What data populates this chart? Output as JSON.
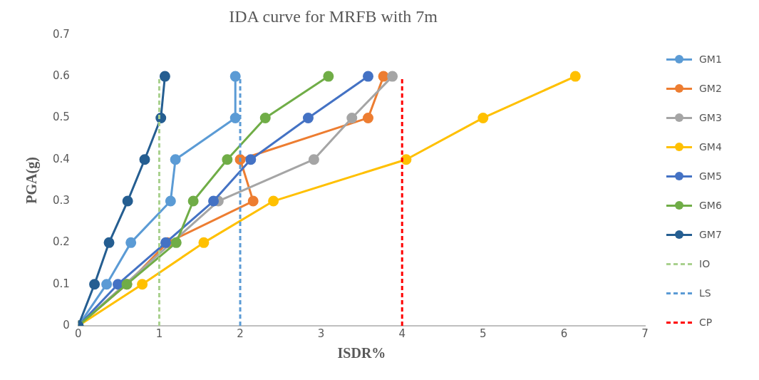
{
  "chart_data": {
    "type": "line",
    "title": "IDA curve for MRFB with 7m",
    "xlabel": "ISDR%",
    "ylabel": "PGA(g)",
    "xlim": [
      0,
      7
    ],
    "xticks": [
      0,
      1,
      2,
      3,
      4,
      5,
      6,
      7
    ],
    "ylim": [
      0,
      0.7
    ],
    "yticks": [
      0,
      0.1,
      0.2,
      0.3,
      0.4,
      0.5,
      0.6,
      0.7
    ],
    "grid": false,
    "legend": "right",
    "marker": "circle",
    "line_style": "solid",
    "series": [
      {
        "name": "GM1",
        "color": "#5b9bd5",
        "x": [
          0,
          0.35,
          0.65,
          1.14,
          1.2,
          1.94,
          1.94
        ],
        "values": [
          0,
          0.1,
          0.2,
          0.3,
          0.4,
          0.5,
          0.6
        ]
      },
      {
        "name": "GM2",
        "color": "#ed7d31",
        "x": [
          0,
          0.6,
          1.1,
          2.16,
          2.0,
          3.58,
          3.77
        ],
        "values": [
          0,
          0.1,
          0.2,
          0.3,
          0.4,
          0.5,
          0.6
        ]
      },
      {
        "name": "GM3",
        "color": "#a5a5a5",
        "x": [
          0,
          0.6,
          1.1,
          1.73,
          2.91,
          3.38,
          3.88
        ],
        "values": [
          0,
          null,
          null,
          0.3,
          0.4,
          0.5,
          0.6
        ]
      },
      {
        "name": "GM4",
        "color": "#ffc000",
        "x": [
          0,
          0.79,
          1.55,
          2.41,
          4.05,
          5.0,
          6.14
        ],
        "values": [
          0,
          0.1,
          0.2,
          0.3,
          0.4,
          0.5,
          0.6
        ]
      },
      {
        "name": "GM5",
        "color": "#4472c4",
        "x": [
          0,
          0.49,
          1.08,
          1.67,
          2.13,
          2.84,
          3.58
        ],
        "values": [
          0,
          0.1,
          0.2,
          0.3,
          0.4,
          0.5,
          0.6
        ]
      },
      {
        "name": "GM6",
        "color": "#70ad47",
        "x": [
          0,
          0.6,
          1.21,
          1.42,
          1.84,
          2.31,
          3.09
        ],
        "values": [
          0,
          0.1,
          0.2,
          0.3,
          0.4,
          0.5,
          0.6
        ]
      },
      {
        "name": "GM7",
        "color": "#255e91",
        "x": [
          0,
          0.2,
          0.38,
          0.61,
          0.82,
          1.02,
          1.07
        ],
        "values": [
          0,
          0.1,
          0.2,
          0.3,
          0.4,
          0.5,
          0.6
        ]
      },
      {
        "name": "IO",
        "color": "#a9d18e",
        "x": [
          1,
          1
        ],
        "values": [
          0,
          0.6
        ],
        "marker": "none",
        "line_style": "dashed"
      },
      {
        "name": "LS",
        "color": "#5b9bd5",
        "x": [
          2,
          2
        ],
        "values": [
          0,
          0.6
        ],
        "marker": "none",
        "line_style": "dashed"
      },
      {
        "name": "CP",
        "color": "#ff0000",
        "x": [
          4,
          4
        ],
        "values": [
          0,
          0.6
        ],
        "marker": "none",
        "line_style": "dashed"
      }
    ]
  }
}
